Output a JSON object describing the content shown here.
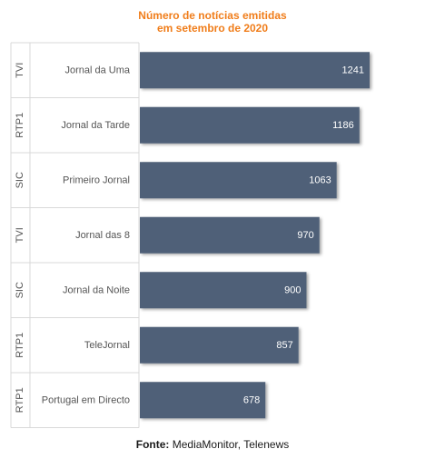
{
  "chart_data": {
    "type": "bar",
    "orientation": "horizontal",
    "title_lines": [
      "Número de notícias emitidas",
      "em setembro de 2020"
    ],
    "categories": [
      {
        "channel": "TVI",
        "program": "Jornal da Uma"
      },
      {
        "channel": "RTP1",
        "program": "Jornal da Tarde"
      },
      {
        "channel": "SIC",
        "program": "Primeiro Jornal"
      },
      {
        "channel": "TVI",
        "program": "Jornal das 8"
      },
      {
        "channel": "SIC",
        "program": "Jornal da Noite"
      },
      {
        "channel": "RTP1",
        "program": "TeleJornal"
      },
      {
        "channel": "RTP1",
        "program": "Portugal em Directo"
      }
    ],
    "values": [
      1241,
      1186,
      1063,
      970,
      900,
      857,
      678
    ],
    "xlim": [
      0,
      1241
    ],
    "grid": false,
    "data_labels": true,
    "bar_color": "#4f6178",
    "label_color": "#ffffff"
  },
  "source": {
    "label": "Fonte:",
    "text": " MediaMonitor, Telenews"
  }
}
